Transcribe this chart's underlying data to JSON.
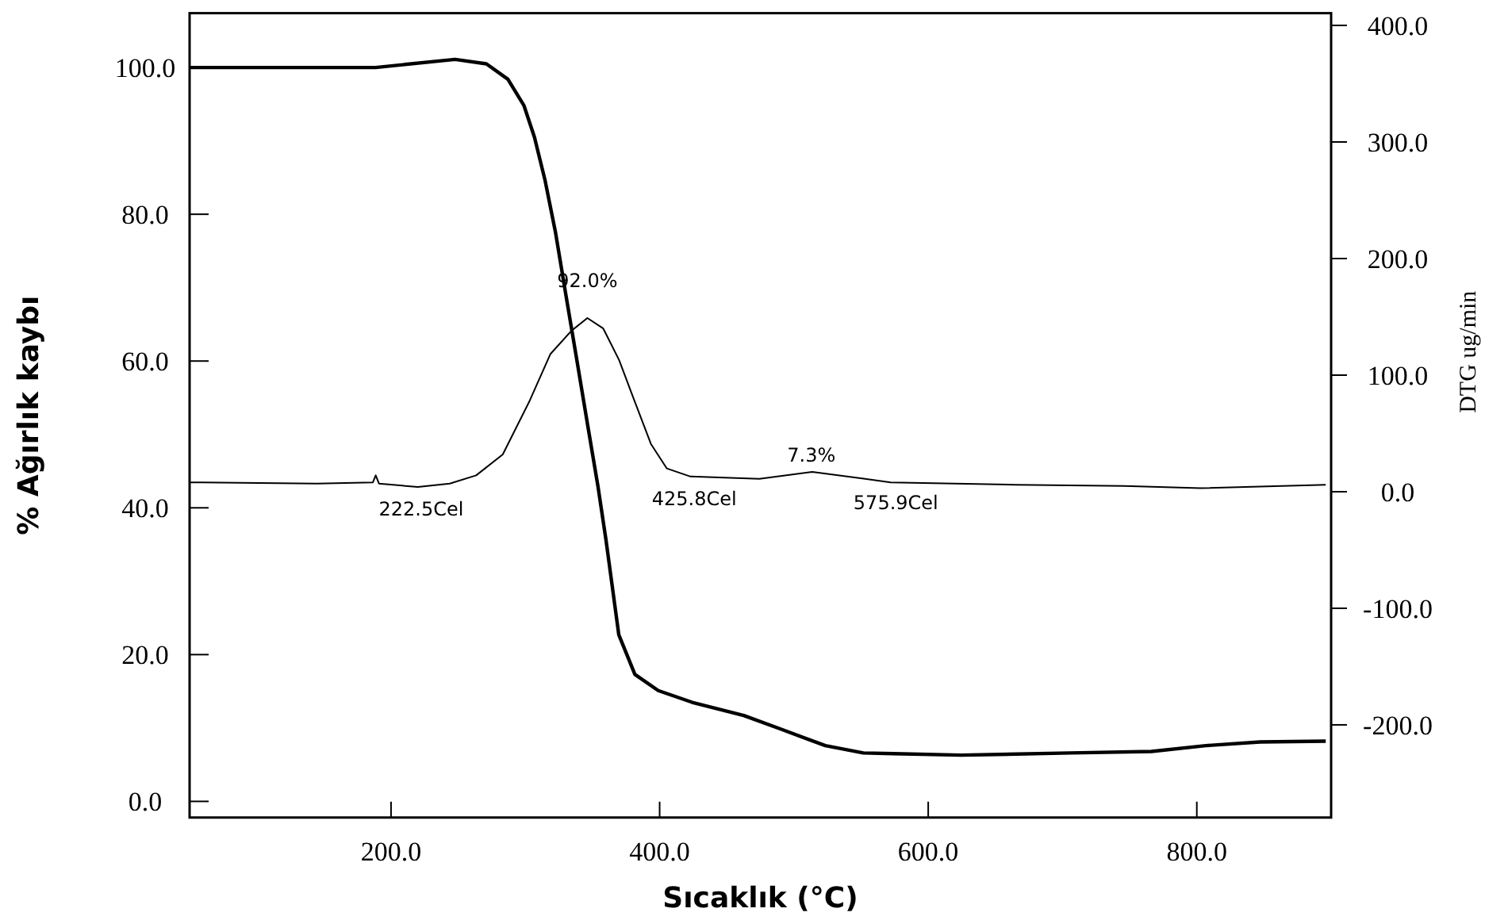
{
  "chart_data": {
    "type": "line",
    "xlabel": "Sıcaklık (°C)",
    "ylabel": "% Ağırlık kaybı",
    "y2label": "DTG ug/min",
    "xlim": [
      50,
      900
    ],
    "xticks": [
      {
        "value": 200,
        "label": "200.0"
      },
      {
        "value": 400,
        "label": "400.0"
      },
      {
        "value": 600,
        "label": "600.0"
      },
      {
        "value": 800,
        "label": "800.0"
      }
    ],
    "ylim": [
      -2.2,
      107.4
    ],
    "yticks": [
      {
        "value": 0,
        "label": "0.0"
      },
      {
        "value": 20,
        "label": "20.0"
      },
      {
        "value": 40,
        "label": "40.0"
      },
      {
        "value": 60,
        "label": "60.0"
      },
      {
        "value": 80,
        "label": "80.0"
      },
      {
        "value": 100,
        "label": "100.0"
      }
    ],
    "y2lim": [
      -279.5,
      410.5
    ],
    "y2ticks": [
      {
        "value": -200,
        "label": "-200.0"
      },
      {
        "value": -100,
        "label": "-100.0"
      },
      {
        "value": 0,
        "label": "0.0"
      },
      {
        "value": 100,
        "label": "100.0"
      },
      {
        "value": 200,
        "label": "200.0"
      },
      {
        "value": 300,
        "label": "300.0"
      },
      {
        "value": 400,
        "label": "400.0"
      }
    ],
    "grid": false,
    "marker": "none",
    "line_style": "solid",
    "series": [
      {
        "color": "#000000",
        "x": [
          50,
          188.6,
          247.7,
          271,
          287,
          299,
          306.8,
          314.6,
          322.5,
          330.4,
          338.3,
          346.2,
          354.1,
          360,
          369.6,
          381.6,
          399,
          419.5,
          424.2,
          462.6,
          491,
          523.4,
          551.7,
          574,
          624.6,
          705.6,
          766.2,
          806.8,
          847.2,
          896
        ],
        "values": [
          100.0,
          100.0,
          101.1,
          100.5,
          98.4,
          94.8,
          90.5,
          84.7,
          77.5,
          68.8,
          60.2,
          51.5,
          42.9,
          35.7,
          22.7,
          17.3,
          15.1,
          13.8,
          13.5,
          11.7,
          9.8,
          7.6,
          6.6,
          6.5,
          6.3,
          6.6,
          6.8,
          7.6,
          8.1,
          8.2
        ]
      },
      {
        "color": "#000000",
        "axis": "y2",
        "x": [
          50,
          145,
          186.5,
          188.6,
          191,
          220,
          243.7,
          263.4,
          283.2,
          302.8,
          318.6,
          334.3,
          346.2,
          358,
          369.8,
          381.6,
          393.5,
          405.3,
          423,
          474.3,
          513.7,
          553,
          572,
          665,
          746,
          802.6,
          896
        ],
        "values": [
          8,
          7,
          8,
          14,
          7,
          4,
          7,
          14,
          32,
          77,
          118,
          138,
          149,
          140,
          113,
          77,
          41,
          20,
          13,
          11,
          17,
          11,
          8,
          6,
          5,
          3,
          6
        ]
      }
    ],
    "annotations": [
      {
        "text": "92.0%",
        "x": 346.2,
        "y": 65.8
      },
      {
        "text": "222.5Cel",
        "x": 222.5,
        "y": 42.8
      },
      {
        "text": "425.8Cel",
        "x": 425.8,
        "y": 44.3
      },
      {
        "text": "7.3%",
        "x": 513,
        "y": 45.4
      },
      {
        "text": "575.9Cel",
        "x": 575.9,
        "y": 43.7
      }
    ]
  }
}
